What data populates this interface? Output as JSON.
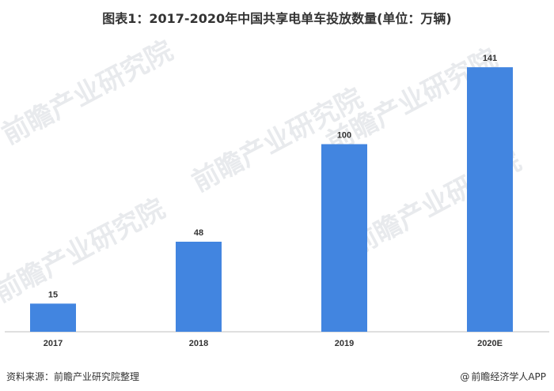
{
  "chart_data": {
    "type": "bar",
    "title": "图表1：2017-2020年中国共享电单车投放数量(单位：万辆)",
    "categories": [
      "2017",
      "2018",
      "2019",
      "2020E"
    ],
    "values": [
      15,
      48,
      100,
      141
    ],
    "ylim": [
      0,
      160
    ],
    "xlabel": "",
    "ylabel": "",
    "grid": false,
    "data_labels": true,
    "bar_color": "#4285e0"
  },
  "footer": {
    "source": "资料来源：前瞻产业研究院整理",
    "credit": "前瞻经济学人APP",
    "credit_icon": "@"
  },
  "watermark": {
    "text": "前瞻产业研究院"
  }
}
